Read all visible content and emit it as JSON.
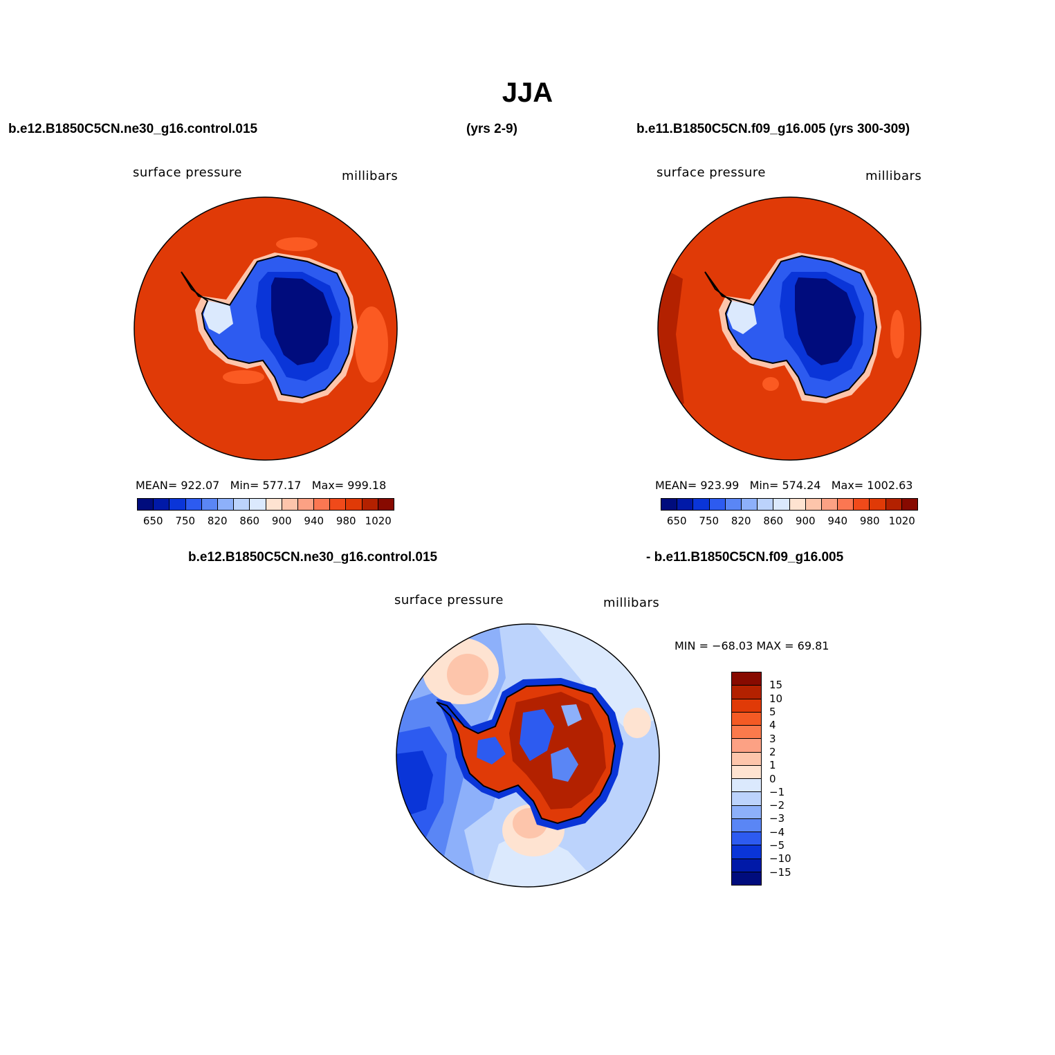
{
  "title": "JJA",
  "header": {
    "case1": "b.e12.B1850C5CN.ne30_g16.control.015",
    "years1": "(yrs 2-9)",
    "case2": "b.e11.B1850C5CN.f09_g16.005 (yrs 300-309)",
    "diff_left": "b.e12.B1850C5CN.ne30_g16.control.015",
    "diff_right": "- b.e11.B1850C5CN.f09_g16.005"
  },
  "panel1": {
    "variable": "surface pressure",
    "units": "millibars",
    "mean_label": "MEAN=",
    "mean": "922.07",
    "min_label": "Min=",
    "min": "577.17",
    "max_label": "Max=",
    "max": "999.18"
  },
  "panel2": {
    "variable": "surface pressure",
    "units": "millibars",
    "mean_label": "MEAN=",
    "mean": "923.99",
    "min_label": "Min=",
    "min": "574.24",
    "max_label": "Max=",
    "max": "1002.63"
  },
  "panel3": {
    "variable": "surface pressure",
    "units": "millibars",
    "minmax_text": "MIN = −68.03 MAX =   69.81"
  },
  "abs_colorbar": {
    "tick_labels": [
      "650",
      "750",
      "820",
      "860",
      "900",
      "940",
      "980",
      "1020"
    ],
    "colors": [
      "#000c7d",
      "#0019a8",
      "#0a35d8",
      "#2d5bf0",
      "#5a86f5",
      "#8db0fa",
      "#bcd3fc",
      "#dbe9fd",
      "#fee3d1",
      "#fdc5ab",
      "#fca184",
      "#fb7752",
      "#f04a1a",
      "#e03a07",
      "#b32100",
      "#870a00"
    ]
  },
  "diff_colorbar": {
    "tick_labels": [
      "15",
      "10",
      "5",
      "4",
      "3",
      "2",
      "1",
      "0",
      "−1",
      "−2",
      "−3",
      "−4",
      "−5",
      "−10",
      "−15"
    ],
    "colors": [
      "#870a00",
      "#b32100",
      "#e03a07",
      "#f45a24",
      "#fb7a4c",
      "#fca184",
      "#fdc5ab",
      "#fee3d1",
      "#dbe9fd",
      "#bcd3fc",
      "#8db0fa",
      "#5a86f5",
      "#2d5bf0",
      "#0a35d8",
      "#0019a8",
      "#000c7d"
    ]
  },
  "map_colors": {
    "ocean_abs": "#e03a07",
    "ocean_abs_light": "#fb5a22",
    "coast_rim": "#fdc5ab",
    "ice_mid": "#2d5bf0",
    "ice_inner": "#0a35d8",
    "ice_core": "#000c7d",
    "peninsula": "#dbe9fd",
    "diff_base": "#8db0fa"
  }
}
